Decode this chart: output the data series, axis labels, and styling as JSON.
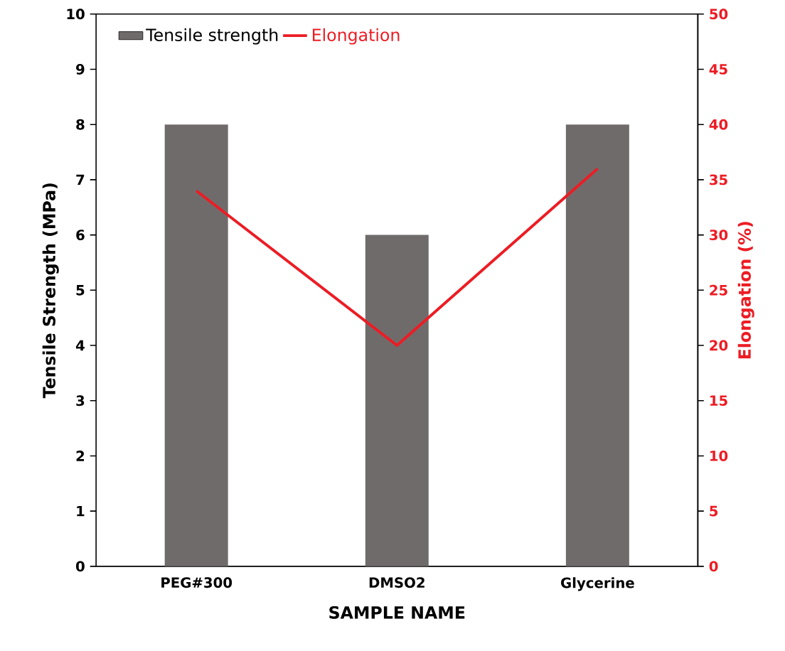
{
  "chart_data": {
    "type": "bar",
    "xlabel": "SAMPLE NAME",
    "ylabel": "Tensile Strength (MPa)",
    "y2label": "Elongation (%)",
    "categories": [
      "PEG#300",
      "DMSO2",
      "Glycerine"
    ],
    "series": [
      {
        "name": "Tensile strength",
        "color": "#706b6b",
        "values": [
          8,
          6,
          8
        ]
      },
      {
        "name": "Elongation",
        "type": "line",
        "axis": "y2",
        "color": "#ed1c24",
        "values": [
          34,
          20,
          36
        ]
      }
    ],
    "ylim": [
      0,
      10
    ],
    "yticks": [
      0,
      1,
      2,
      3,
      4,
      5,
      6,
      7,
      8,
      9,
      10
    ],
    "y2lim": [
      0,
      50
    ],
    "y2ticks": [
      0,
      5,
      10,
      15,
      20,
      25,
      30,
      35,
      40,
      45,
      50
    ],
    "legend": "top left",
    "marker": "none",
    "line_style": "solid"
  }
}
